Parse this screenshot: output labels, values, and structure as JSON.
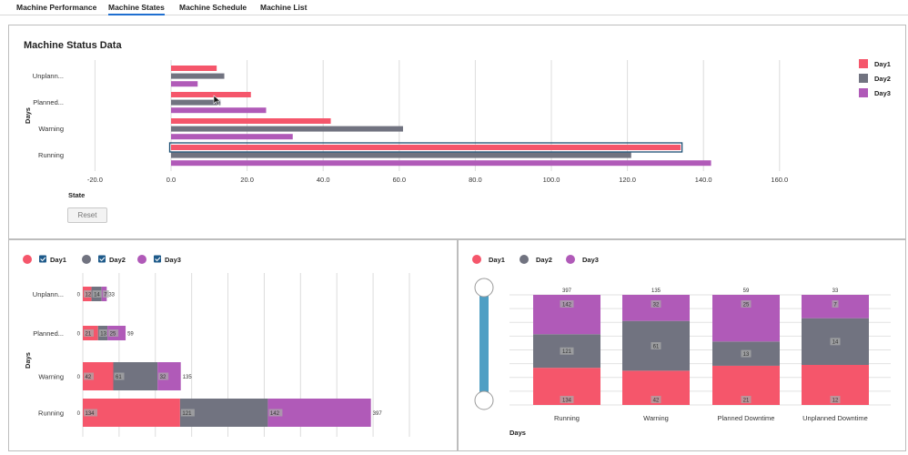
{
  "tabs": [
    {
      "label": "Machine Performance"
    },
    {
      "label": "Machine States"
    },
    {
      "label": "Machine Schedule"
    },
    {
      "label": "Machine List"
    }
  ],
  "top_panel": {
    "title": "Machine Status Data",
    "reset_label": "Reset"
  },
  "colors": {
    "day1": "#f5566b",
    "day2": "#717380",
    "day3": "#b05ab8",
    "slider": "#4f9fc4"
  },
  "chart_data": [
    {
      "type": "bar",
      "orientation": "horizontal",
      "title": "Machine Status Data",
      "categories": [
        "Unplann...",
        "Planned...",
        "Warning",
        "Running"
      ],
      "series": [
        {
          "name": "Day1",
          "values": [
            12,
            21,
            42,
            134
          ]
        },
        {
          "name": "Day2",
          "values": [
            14,
            13,
            61,
            121
          ]
        },
        {
          "name": "Day3",
          "values": [
            7,
            25,
            32,
            142
          ]
        }
      ],
      "xlabel": "State",
      "ylabel": "Days",
      "ticks": [
        "-20.0",
        "0.0",
        "20.0",
        "40.0",
        "60.0",
        "80.0",
        "100.0",
        "120.0",
        "140.0",
        "160.0"
      ],
      "xlim": [
        -20,
        160
      ],
      "grid": true,
      "legend": "top-right"
    },
    {
      "type": "bar",
      "orientation": "horizontal",
      "stacked": true,
      "categories": [
        "Unplann...",
        "Planned...",
        "Warning",
        "Running"
      ],
      "series": [
        {
          "name": "Day1",
          "values": [
            12,
            21,
            42,
            134
          ]
        },
        {
          "name": "Day2",
          "values": [
            14,
            13,
            61,
            121
          ]
        },
        {
          "name": "Day3",
          "values": [
            7,
            25,
            32,
            142
          ]
        }
      ],
      "base_labels": [
        "0",
        "0",
        "0",
        "0"
      ],
      "totals": [
        "33",
        "59",
        "135",
        "397"
      ],
      "ylabel": "Days",
      "xlim": [
        0,
        450
      ],
      "grid": true,
      "legend": "top-left",
      "legend_checkboxes": true
    },
    {
      "type": "bar",
      "orientation": "vertical",
      "stacked": true,
      "categories": [
        "Running",
        "Warning",
        "Planned Downtime",
        "Unplanned Downtime"
      ],
      "series": [
        {
          "name": "Day1",
          "values": [
            134,
            42,
            21,
            12
          ]
        },
        {
          "name": "Day2",
          "values": [
            121,
            61,
            13,
            14
          ]
        },
        {
          "name": "Day3",
          "values": [
            142,
            32,
            25,
            7
          ]
        }
      ],
      "totals": [
        "397",
        "135",
        "59",
        "33"
      ],
      "xlabel": "Days",
      "normalized": true,
      "grid": true,
      "legend": "top-left",
      "zoom_slider": true
    }
  ]
}
